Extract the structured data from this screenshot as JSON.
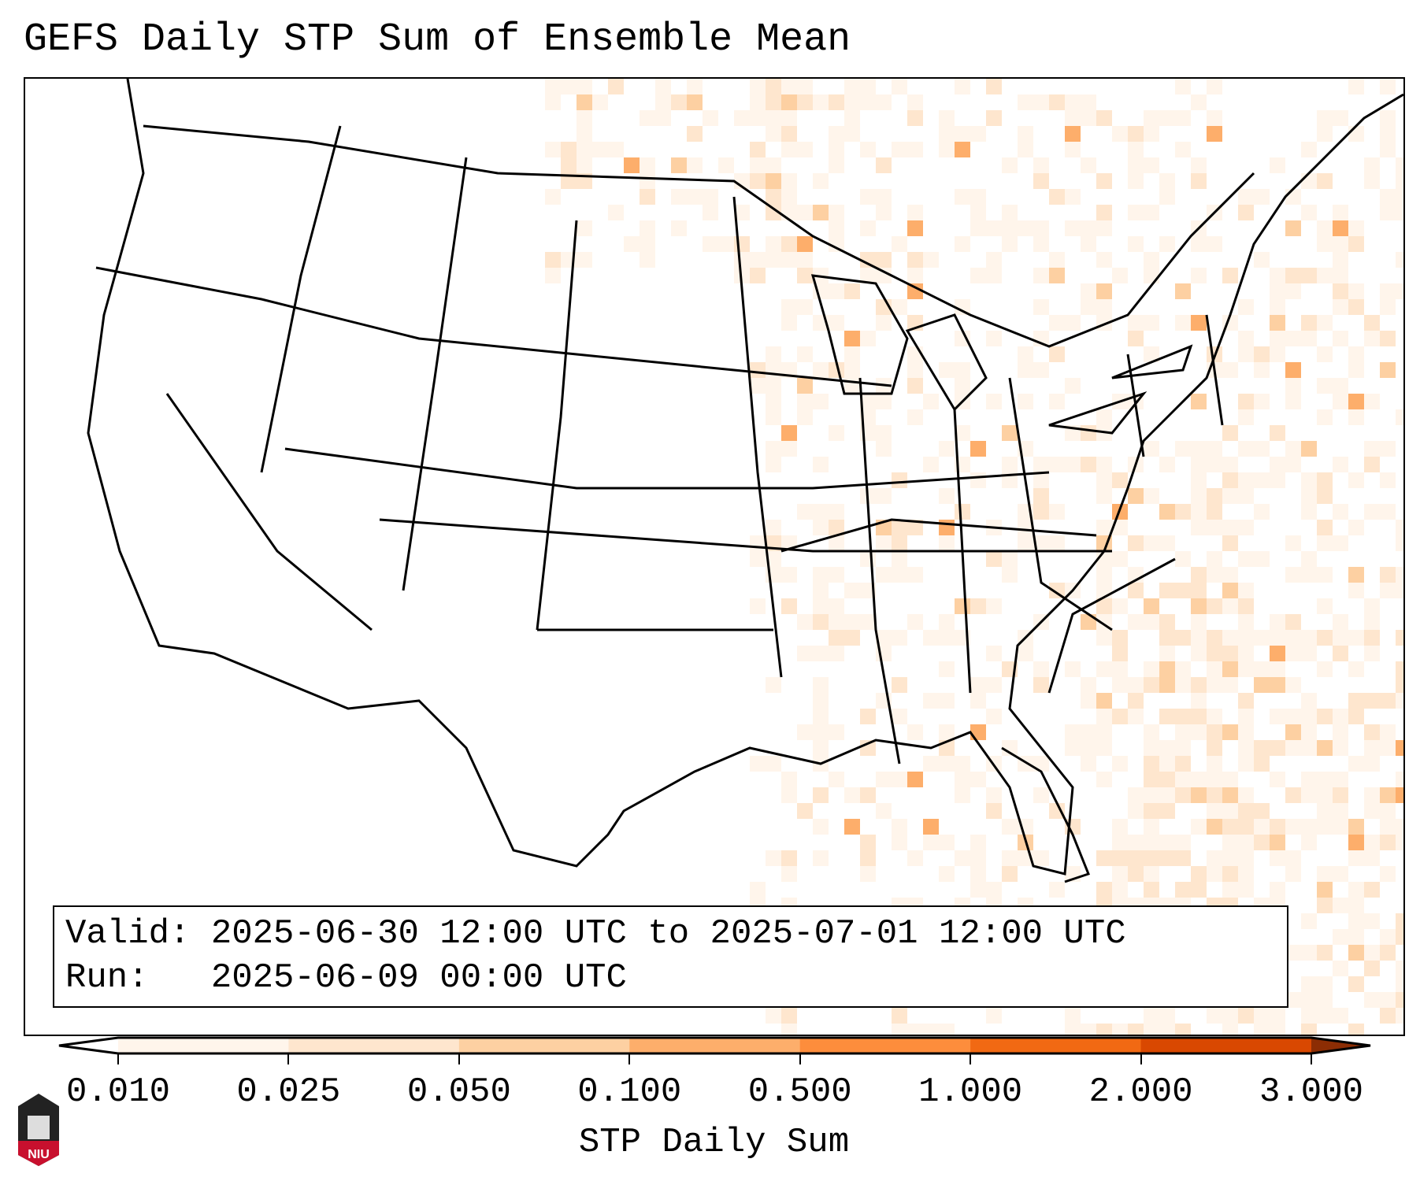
{
  "title": "GEFS Daily STP Sum of Ensemble Mean",
  "legend": {
    "valid_label": "Valid:",
    "valid_value": "2025-06-30 12:00 UTC to 2025-07-01 12:00 UTC",
    "run_label": "Run:",
    "run_value": "2025-06-09 00:00 UTC"
  },
  "colorbar": {
    "label": "STP Daily Sum",
    "ticks": [
      "0.010",
      "0.025",
      "0.050",
      "0.100",
      "0.500",
      "1.000",
      "2.000",
      "3.000"
    ],
    "colors": [
      "#fff5eb",
      "#fee6ce",
      "#fdd0a2",
      "#fdae6b",
      "#fd8d3c",
      "#f16913",
      "#d94801",
      "#8c2d04"
    ]
  },
  "logo_text": "NIU"
}
